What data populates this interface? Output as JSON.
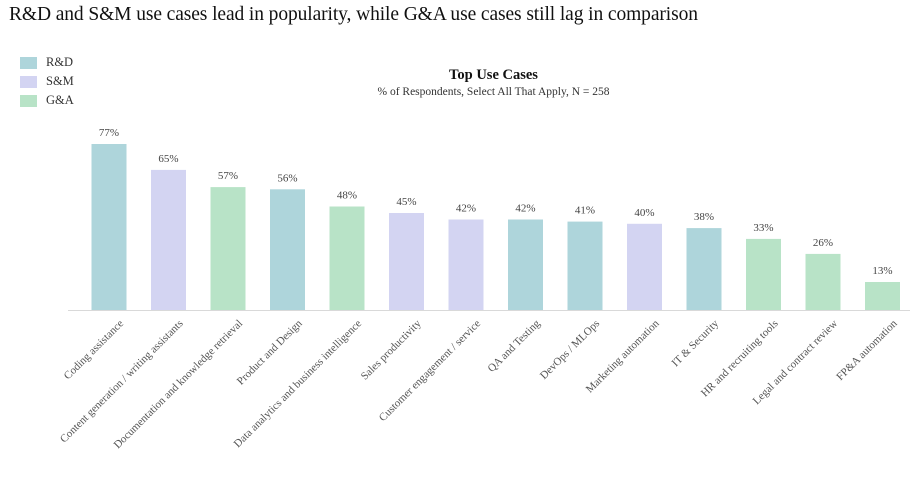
{
  "headline": "R&D and S&M use cases lead in popularity, while G&A use cases still lag in comparison",
  "legend": [
    {
      "label": "R&D",
      "color": "#aed5db"
    },
    {
      "label": "S&M",
      "color": "#d3d4f2"
    },
    {
      "label": "G&A",
      "color": "#b8e3c7"
    }
  ],
  "chart_data": {
    "type": "bar",
    "title": "Top Use Cases",
    "subtitle": "% of Respondents, Select All That Apply, N = 258",
    "categories": [
      "Coding assistance",
      "Content generation / writing assistants",
      "Documentation and knowledge retrieval",
      "Product and Design",
      "Data analytics and business intelligence",
      "Sales productivity",
      "Customer engagement / service",
      "QA and Testing",
      "DevOps / MLOps",
      "Marketing automation",
      "IT & Security",
      "HR and recruiting tools",
      "Legal and contract review",
      "FP&A automation"
    ],
    "values": [
      77,
      65,
      57,
      56,
      48,
      45,
      42,
      42,
      41,
      40,
      38,
      33,
      26,
      13
    ],
    "value_labels": [
      "77%",
      "65%",
      "57%",
      "56%",
      "48%",
      "45%",
      "42%",
      "42%",
      "41%",
      "40%",
      "38%",
      "33%",
      "26%",
      "13%"
    ],
    "groups": [
      "R&D",
      "S&M",
      "G&A",
      "R&D",
      "G&A",
      "S&M",
      "S&M",
      "R&D",
      "R&D",
      "S&M",
      "R&D",
      "G&A",
      "G&A",
      "G&A"
    ],
    "ylim": [
      0,
      77
    ],
    "grid": false,
    "legend_position": "top-left"
  }
}
